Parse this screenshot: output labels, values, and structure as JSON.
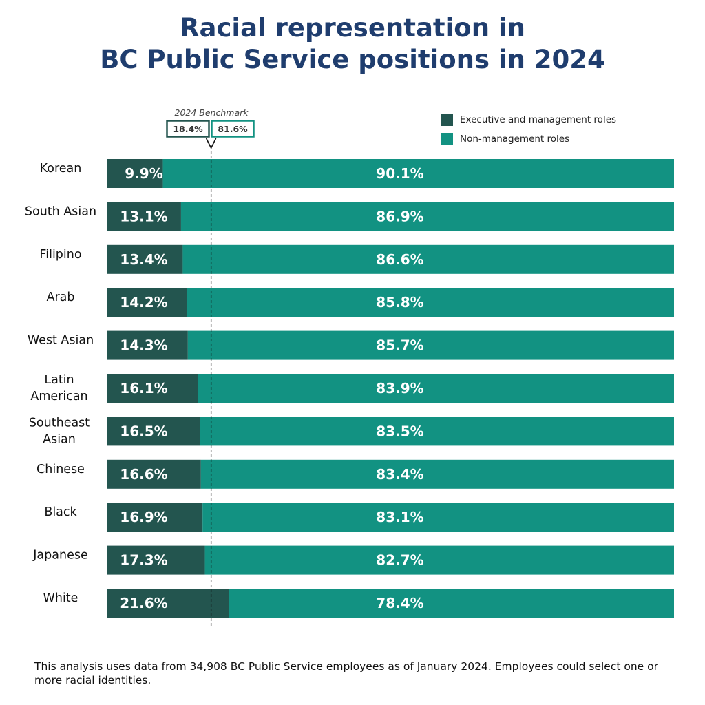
{
  "title_line1": "Racial representation in",
  "title_line2": "BC Public Service positions in 2024",
  "colors": {
    "executive": "#23554f",
    "nonmanagement": "#129282",
    "title": "#1f3d6e"
  },
  "legend": {
    "executive": "Executive and management roles",
    "nonmanagement": "Non-management roles"
  },
  "benchmark": {
    "label": "2024 Benchmark",
    "executive_text": "18.4%",
    "nonmanagement_text": "81.6%",
    "executive": 18.4
  },
  "footnote": "This analysis uses data from 34,908 BC Public Service employees as of January 2024. Employees could select one or more racial identities.",
  "chart_data": {
    "type": "bar",
    "orientation": "horizontal",
    "stacked": true,
    "xlim": [
      0,
      100
    ],
    "categories": [
      [
        "Korean"
      ],
      [
        "South Asian"
      ],
      [
        "Filipino"
      ],
      [
        "Arab"
      ],
      [
        "West Asian"
      ],
      [
        "Latin",
        "American"
      ],
      [
        "Southeast",
        "Asian"
      ],
      [
        "Chinese"
      ],
      [
        "Black"
      ],
      [
        "Japanese"
      ],
      [
        "White"
      ]
    ],
    "series": [
      {
        "name": "Executive and management roles",
        "values": [
          9.9,
          13.1,
          13.4,
          14.2,
          14.3,
          16.1,
          16.5,
          16.6,
          16.9,
          17.3,
          21.6
        ],
        "labels": [
          "9.9%",
          "13.1%",
          "13.4%",
          "14.2%",
          "14.3%",
          "16.1%",
          "16.5%",
          "16.6%",
          "16.9%",
          "17.3%",
          "21.6%"
        ]
      },
      {
        "name": "Non-management roles",
        "values": [
          90.1,
          86.9,
          86.6,
          85.8,
          85.7,
          83.9,
          83.5,
          83.4,
          83.1,
          82.7,
          78.4
        ],
        "labels": [
          "90.1%",
          "86.9%",
          "86.6%",
          "85.8%",
          "85.7%",
          "83.9%",
          "83.5%",
          "83.4%",
          "83.1%",
          "82.7%",
          "78.4%"
        ]
      }
    ]
  }
}
